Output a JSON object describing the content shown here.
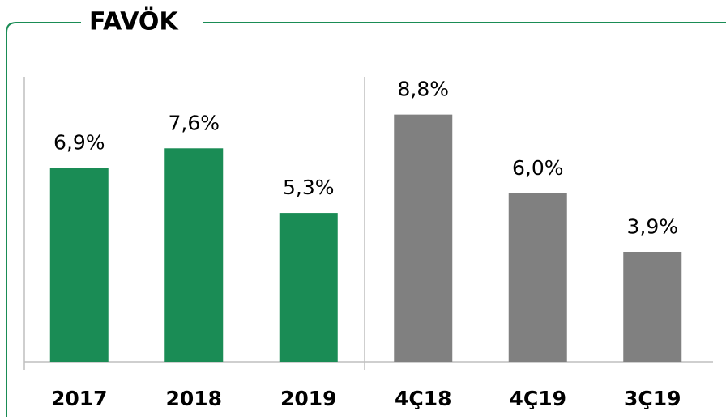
{
  "chart_data": {
    "type": "bar",
    "title": "FAVÖK",
    "categories": [
      "2017",
      "2018",
      "2019",
      "4Ç18",
      "4Ç19",
      "3Ç19"
    ],
    "values": [
      6.9,
      7.6,
      5.3,
      8.8,
      6.0,
      3.9
    ],
    "value_labels": [
      "6,9%",
      "7,6%",
      "5,3%",
      "8,8%",
      "6,0%",
      "3,9%"
    ],
    "colors": [
      "#1a8c55",
      "#1a8c55",
      "#1a8c55",
      "#808080",
      "#808080",
      "#808080"
    ],
    "ylim": [
      0,
      10
    ]
  }
}
